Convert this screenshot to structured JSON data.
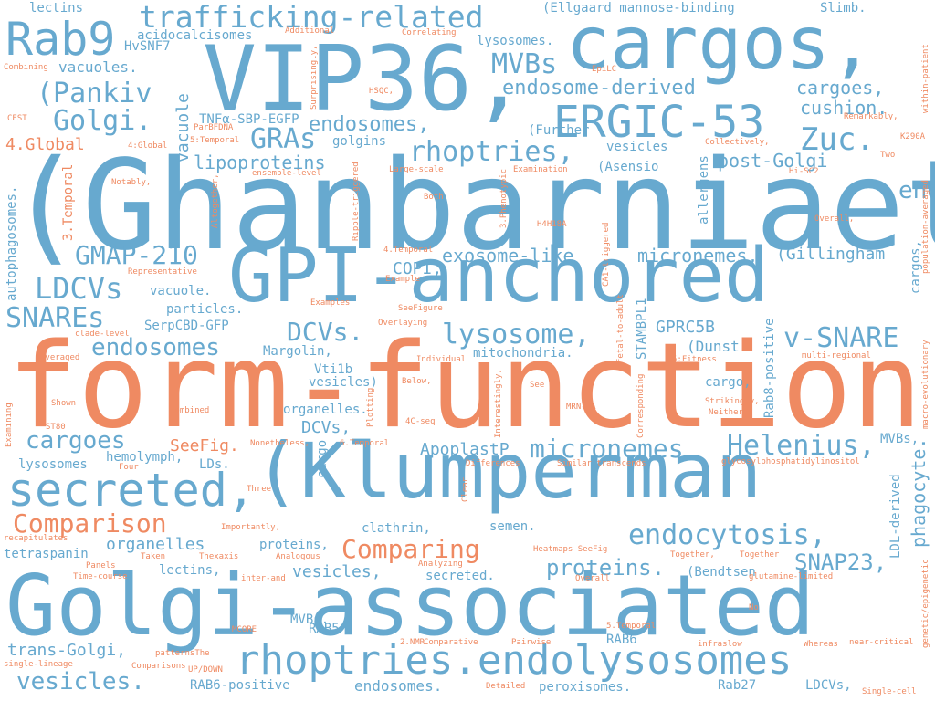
{
  "colors": {
    "blue": "#67a9cf",
    "orange": "#ef8a62",
    "background": "#ffffff"
  },
  "words": [
    "(Ghanbarniaet",
    "form-function",
    "Golgi-associated",
    "GPI-anchored",
    "(Klumperman",
    "VIP36,",
    "cargos,",
    "ERGIC-53",
    "secreted,",
    "rhoptries.endolysosomes",
    "trafficking-related",
    "Rab9",
    "rhoptries,",
    "Helenius,",
    "endosome,",
    "lysosome,",
    "endocytosis,",
    "micronemes",
    "Comparison",
    "Comparing",
    "(Pankiv",
    "Golgi.",
    "GRAs",
    "Zuc.",
    "GMAP-210",
    "LDCVs",
    "SNAREs",
    "endosomes",
    "v-SNARE",
    "DCVs.",
    "MVBs",
    "cargoes",
    "vesicles.",
    "proteins.",
    "SNAP23,",
    "endosome-derived",
    "cargoes,",
    "cushion.",
    "endosomes,",
    "lipoproteins",
    "post-Golgi",
    "exosome-like",
    "micronemes,",
    "(Gillingham",
    "4.Global",
    "lectins",
    "(Ellgaard mannose-binding",
    "Slimb.",
    "acidocalcisomes",
    "lysosomes.",
    "vacuoles.",
    "TNFα-SBP-EGFP",
    "golgins",
    "(Further",
    "vesicles",
    "(Asensio",
    "vacuole",
    "phagocyte.",
    "cargos,",
    "COPI,",
    "GPRC5B",
    "(Dunst",
    "cargo,",
    "mitochondria.",
    "Margolin,",
    "Vti1b",
    "vesicles)",
    "organelles.",
    "DCVs,",
    "SerpCBD-GFP",
    "particles.",
    "vacuole.",
    "SeeFig.",
    "hemolymph,",
    "LDs.",
    "ApoplastP",
    "lysosomes",
    "organelles",
    "clathrin,",
    "semen.",
    "proteins,",
    "lectins,",
    "vesicles,",
    "secreted.",
    "(Bendtsen",
    "RAB5",
    "RAB6",
    "MVBs.",
    "trans-Golgi,",
    "RAB6-positive",
    "endosomes.",
    "peroxisomes.",
    "Rab27",
    "LDCVs,",
    "tetraspanin",
    "LDL-derived",
    "Rab8-positive",
    "MVBs,",
    "STAMBPL1",
    "allergens",
    "HvSNF7",
    "Additional",
    "Correlating",
    "EpiLC",
    "HSQC,",
    "Remarkably,",
    "K290A",
    "Two",
    "Collectively,",
    "Hi-SC2",
    "Overall,",
    "Combining",
    "CEST",
    "ParBFDNA",
    "5:Temporal",
    "4:Global",
    "ensemble-level",
    "Large-scale",
    "Examination",
    "3.Phenotypic",
    "H4H18A",
    "Notably,",
    "Both",
    "Altogether,",
    "3.Temporal",
    "Ripple-triggered",
    "CA1-triggered",
    "4.Temporal",
    "Example",
    "Representative",
    "Examples",
    "SeeFigure",
    "Overlaying",
    "clade-level",
    "Averaged",
    "Individual",
    "Below,",
    "See",
    "5:Fitness",
    "multi-regional",
    "Strikingly,",
    "Neither",
    "Shown",
    "Combined",
    "ST80",
    "4C-seq",
    "MRN-NA",
    "6.Temporal",
    "Nonetheless,",
    "Four",
    "Differences",
    "Similar transcends",
    "glycosylphosphatidylinositol",
    "Three",
    "Clear",
    "Importantly,",
    "recapitulates",
    "Taken",
    "Thexaxis",
    "Analogous",
    "Analyzing",
    "Heatmaps SeeFig",
    "Together,",
    "Together",
    "Panels",
    "Time-course",
    "inter-and",
    "Overall",
    "glutamine-limited",
    "MCORE",
    "No",
    "5.Temporal",
    "2.NMR",
    "patternsThe",
    "Comparative",
    "Pairwise",
    "infraslow",
    "Whereas",
    "near-critical",
    "single-lineage",
    "Comparisons",
    "UP/DOWN",
    "Detailed",
    "Single-cell",
    "Plotting",
    "Interestingly,",
    "Corresponding",
    "fetal-to-adult",
    "macro-evolutionary",
    "genetic/epigenetic",
    "population-averaged",
    "within-patient",
    "autophagosomes.",
    "cargo",
    "Surprisingly,",
    "Examining"
  ]
}
